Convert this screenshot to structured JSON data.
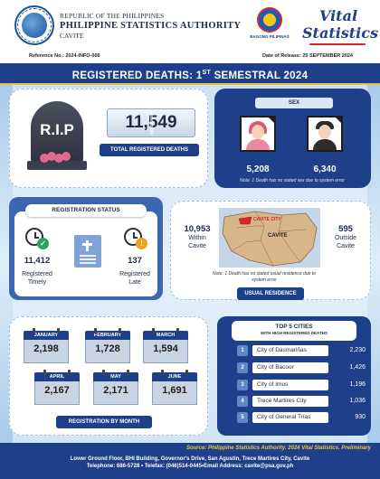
{
  "header": {
    "republic": "REPUBLIC OF THE PHILIPPINES",
    "agency": "PHILIPPINE STATISTICS AUTHORITY",
    "province": "CAVITE",
    "logo_text": "BAGONG PILIPINAS",
    "vital_line1": "Vital",
    "vital_line2": "Statistics"
  },
  "refbar": {
    "reference": "Reference No.:  2024-INFO-006",
    "release": "Date of Release:  25 SEPTEMBER 2024"
  },
  "title": {
    "prefix": "REGISTERED DEATHS: 1",
    "sup": "ST",
    "suffix": " SEMESTRAL 2024"
  },
  "total": {
    "tomb_text": "R.I.P",
    "value": "11,549",
    "label": "TOTAL REGISTERED DEATHS"
  },
  "sex": {
    "title": "SEX",
    "female": "5,208",
    "male": "6,340",
    "note": "Note: 1 Death has no stated sex due to system error"
  },
  "registration": {
    "title": "REGISTRATION STATUS",
    "timely_value": "11,412",
    "timely_label_1": "Registered",
    "timely_label_2": "Timely",
    "late_value": "137",
    "late_label_1": "Registered",
    "late_label_2": "Late"
  },
  "residence": {
    "within_value": "10,953",
    "within_label_1": "Within",
    "within_label_2": "Cavite",
    "outside_value": "595",
    "outside_label_1": "Outside",
    "outside_label_2": "Cavite",
    "map_city_label": "CAVITE CITY",
    "map_province_label": "CAVITE",
    "note": "Note: 1 Death has no stated usual residence due to system error",
    "label": "USUAL RESIDENCE"
  },
  "months": {
    "label": "REGISTRATION BY MONTH",
    "items": [
      {
        "name": "JANUARY",
        "value": "2,198"
      },
      {
        "name": "FEBRUARY",
        "value": "1,728"
      },
      {
        "name": "MARCH",
        "value": "1,594"
      },
      {
        "name": "APRIL",
        "value": "2,167"
      },
      {
        "name": "MAY",
        "value": "2,171"
      },
      {
        "name": "JUNE",
        "value": "1,691"
      }
    ]
  },
  "cities": {
    "title": "TOP 5 CITIES",
    "subtitle": "WITH HIGH REGISTERED DEATHS",
    "rows": [
      {
        "rank": "1",
        "name": "City of Dasmariñas",
        "count": "2,230"
      },
      {
        "rank": "2",
        "name": "City of Bacoor",
        "count": "1,426"
      },
      {
        "rank": "3",
        "name": "City of Imus",
        "count": "1,196"
      },
      {
        "rank": "4",
        "name": "Trece Martires City",
        "count": "1,036"
      },
      {
        "rank": "5",
        "name": "City of General Trias",
        "count": "930"
      }
    ]
  },
  "footer": {
    "source": "Source: Philippine Statistics Authority. 2024 Vital Statistics. Preliminary",
    "address_1": "Lower Ground Floor, BHI Building, Governor's Drive, San Agustin, Trece Martires City, Cavite",
    "address_2": "Telephone: 686-5728 • Telefax: (046)514-0445•Email Address: cavite@psa.gov.ph"
  },
  "colors": {
    "primary": "#1e3f8a",
    "accent_yellow": "#f3c92b",
    "background": "#dfeefa",
    "timely_badge": "#27a35a",
    "late_badge": "#f0a21b"
  }
}
